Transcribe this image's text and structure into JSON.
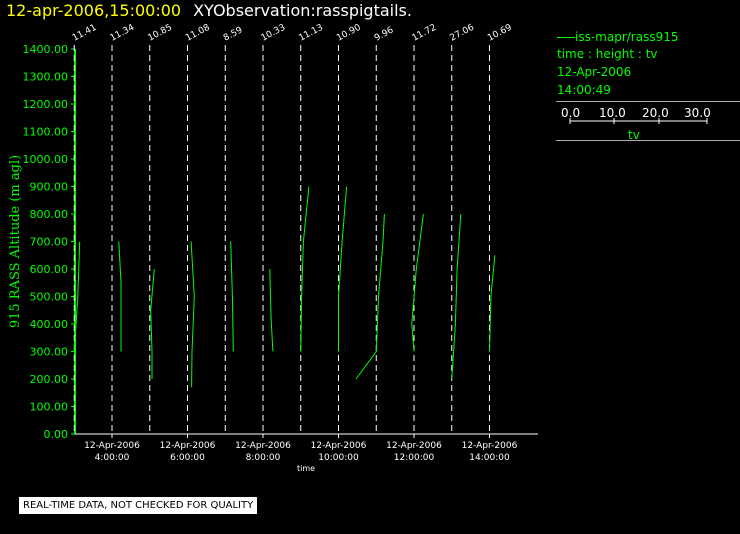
{
  "header": {
    "timestamp": "12-apr-2006,15:00:00",
    "title": "XYObservation:rasspigtails."
  },
  "legend": {
    "series": "iss-mapr/rass915",
    "variables": "time : height : tv",
    "date": "12-Apr-2006",
    "time": "14:00:49",
    "scale_label": "tv",
    "scale_ticks": [
      "0.0",
      "10.0",
      "20.0",
      "30.0"
    ]
  },
  "badge": "REAL-TIME DATA, NOT CHECKED FOR QUALITY",
  "chart_data": {
    "type": "line",
    "ylabel": "915 RASS Altitude (m agl)",
    "xlabel": "time",
    "ylim": [
      0,
      1400
    ],
    "y_ticks": [
      "0.00",
      "100.00",
      "200.00",
      "300.00",
      "400.00",
      "500.00",
      "600.00",
      "700.00",
      "800.00",
      "900.00",
      "1000.00",
      "1100.00",
      "1200.00",
      "1300.00",
      "1400.00"
    ],
    "x_ticks": [
      {
        "date": "12-Apr-2006",
        "time": "4:00:00"
      },
      {
        "date": "12-Apr-2006",
        "time": "6:00:00"
      },
      {
        "date": "12-Apr-2006",
        "time": "8:00:00"
      },
      {
        "date": "12-Apr-2006",
        "time": "10:00:00"
      },
      {
        "date": "12-Apr-2006",
        "time": "12:00:00"
      },
      {
        "date": "12-Apr-2006",
        "time": "14:00:00"
      }
    ],
    "colors": {
      "data": "#00ff00",
      "axis": "#ffffff",
      "baseline": "#ffffff",
      "text": "#ffffff",
      "accent": "#00ff00"
    },
    "profiles": [
      {
        "label": "11.41",
        "time_h": 3.0,
        "points": [
          [
            1.2,
            700
          ],
          [
            0.8,
            500
          ],
          [
            0,
            300
          ]
        ]
      },
      {
        "label": "11.34",
        "time_h": 4.0,
        "points": [
          [
            1.5,
            700
          ],
          [
            2.0,
            550
          ],
          [
            2.0,
            420
          ],
          [
            2.0,
            300
          ]
        ]
      },
      {
        "label": "10.85",
        "time_h": 5.0,
        "points": [
          [
            1.0,
            600
          ],
          [
            0.2,
            450
          ],
          [
            0.5,
            300
          ],
          [
            0.5,
            200
          ]
        ]
      },
      {
        "label": "11.08",
        "time_h": 6.0,
        "points": [
          [
            0.8,
            700
          ],
          [
            1.5,
            500
          ],
          [
            1.0,
            300
          ],
          [
            0.9,
            170
          ]
        ]
      },
      {
        "label": "8.59",
        "time_h": 7.0,
        "points": [
          [
            1.2,
            700
          ],
          [
            1.6,
            500
          ],
          [
            1.8,
            300
          ]
        ]
      },
      {
        "label": "10.33",
        "time_h": 8.0,
        "points": [
          [
            1.5,
            600
          ],
          [
            1.8,
            420
          ],
          [
            2.2,
            300
          ]
        ]
      },
      {
        "label": "11.13",
        "time_h": 9.0,
        "points": [
          [
            1.8,
            900
          ],
          [
            0.6,
            700
          ],
          [
            0.2,
            500
          ],
          [
            0,
            300
          ]
        ]
      },
      {
        "label": "10.90",
        "time_h": 10.0,
        "points": [
          [
            1.8,
            900
          ],
          [
            0.8,
            700
          ],
          [
            0,
            500
          ],
          [
            0,
            300
          ]
        ]
      },
      {
        "label": "9.96",
        "time_h": 11.0,
        "points": [
          [
            1.8,
            800
          ],
          [
            1.5,
            700
          ],
          [
            0.5,
            500
          ],
          [
            0,
            300
          ],
          [
            -4.5,
            200
          ]
        ]
      },
      {
        "label": "11.72",
        "time_h": 12.0,
        "points": [
          [
            2.1,
            800
          ],
          [
            0.5,
            600
          ],
          [
            -0.5,
            400
          ],
          [
            0,
            300
          ]
        ]
      },
      {
        "label": "27.06",
        "time_h": 13.0,
        "points": [
          [
            2.0,
            800
          ],
          [
            1.2,
            600
          ],
          [
            0.8,
            400
          ],
          [
            0,
            200
          ]
        ]
      },
      {
        "label": "10.69",
        "time_h": 14.0,
        "points": [
          [
            1.2,
            650
          ],
          [
            0.3,
            500
          ],
          [
            0,
            300
          ]
        ]
      }
    ]
  }
}
